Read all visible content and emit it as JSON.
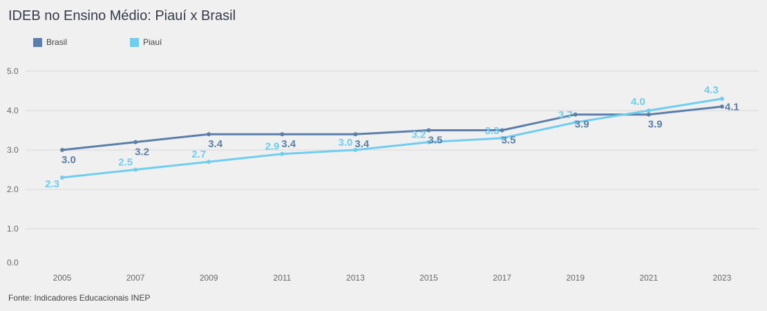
{
  "title": "IDEB no Ensino Médio: Piauí x Brasil",
  "source": "Fonte: Indicadores Educacionais INEP",
  "colors": {
    "brasil": "#5b7fa8",
    "piaui": "#6fcdf0",
    "grid": "#d8d8d8",
    "background": "#f0f0f0"
  },
  "chart_data": {
    "type": "line",
    "title": "IDEB no Ensino Médio: Piauí x Brasil",
    "xlabel": "",
    "ylabel": "",
    "categories": [
      "2005",
      "2007",
      "2009",
      "2011",
      "2013",
      "2015",
      "2017",
      "2019",
      "2021",
      "2023"
    ],
    "ylim": [
      0,
      5
    ],
    "yticks": [
      "0.0",
      "1.0",
      "2.0",
      "3.0",
      "4.0",
      "5.0"
    ],
    "grid": true,
    "legend_position": "top-left",
    "series": [
      {
        "name": "Brasil",
        "values": [
          3.0,
          3.2,
          3.4,
          3.4,
          3.4,
          3.5,
          3.5,
          3.9,
          3.9,
          4.1
        ],
        "labels": [
          "3.0",
          "3.2",
          "3.4",
          "3.4",
          "3.4",
          "3.5",
          "3.5",
          "3.9",
          "3.9",
          "4.1"
        ]
      },
      {
        "name": "Piauí",
        "values": [
          2.3,
          2.5,
          2.7,
          2.9,
          3.0,
          3.2,
          3.3,
          3.7,
          4.0,
          4.3
        ],
        "labels": [
          "2.3",
          "2.5",
          "2.7",
          "2.9",
          "3.0",
          "3.2",
          "3.3",
          "3.7",
          "4.0",
          "4.3"
        ]
      }
    ]
  }
}
